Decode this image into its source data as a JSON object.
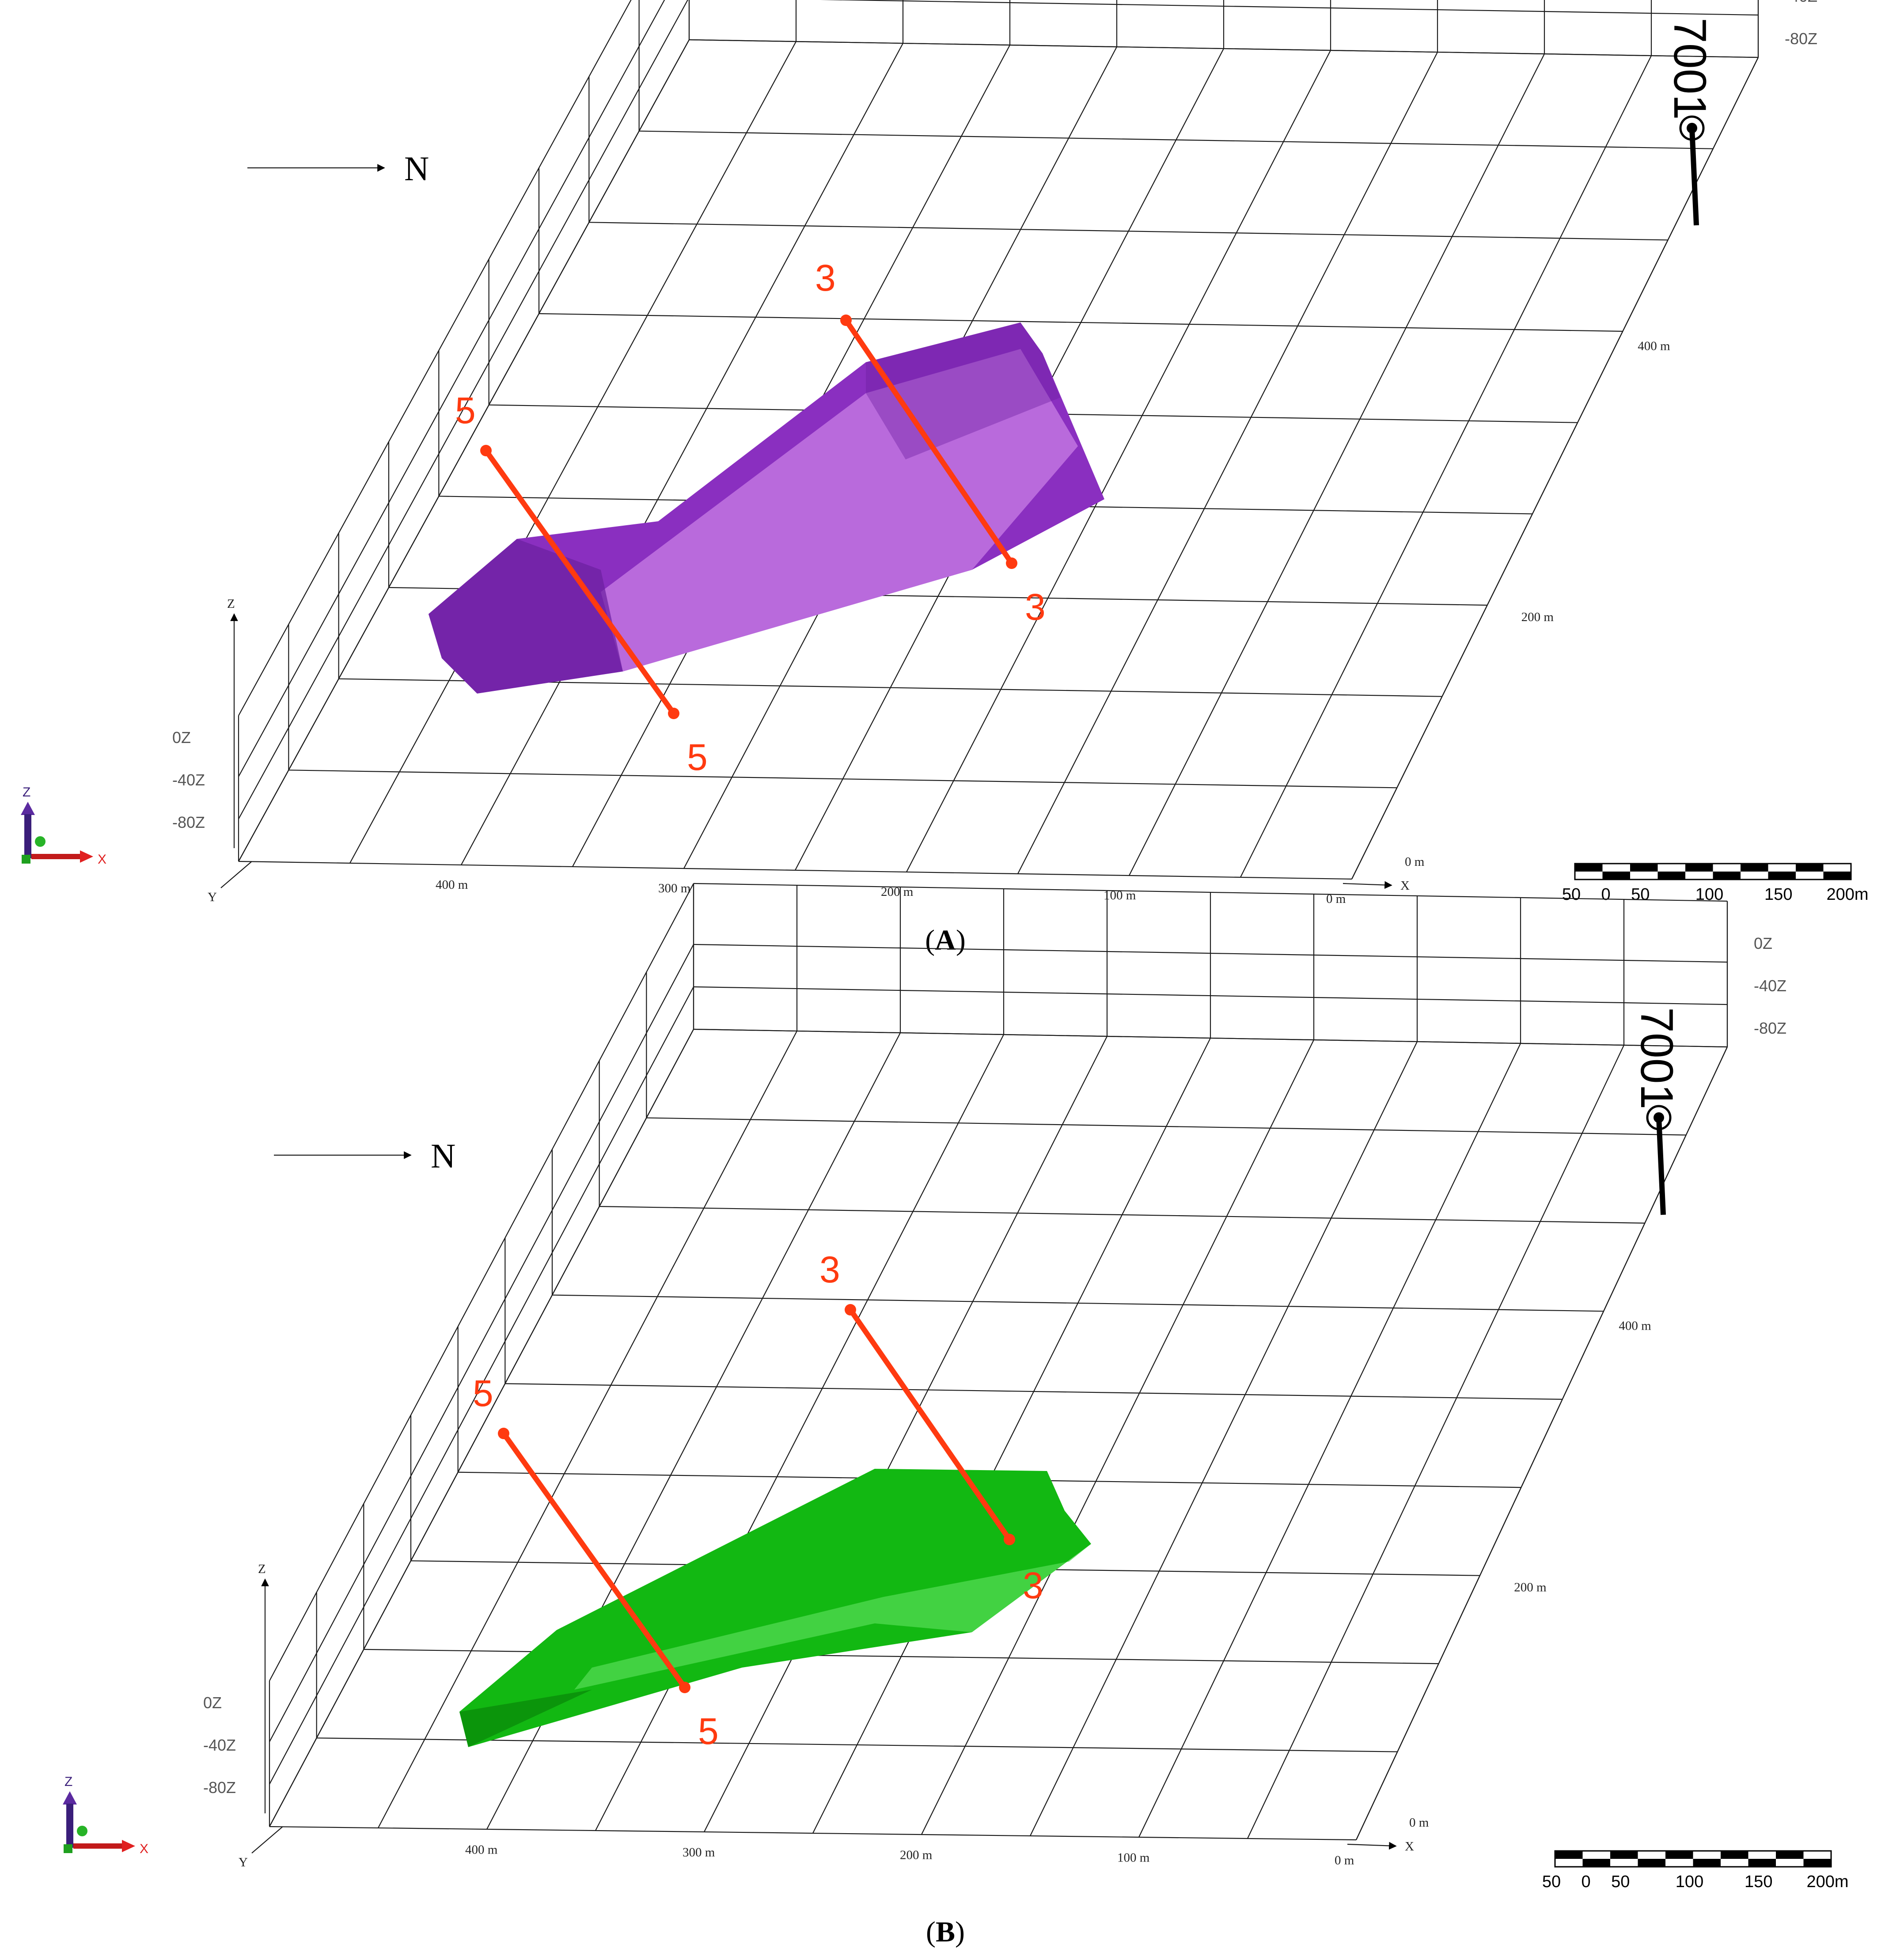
{
  "colors": {
    "panel_a_body": "#8a2fc0",
    "panel_a_body_light": "#c87fe6",
    "panel_a_body_dark": "#6b1fa0",
    "panel_b_body": "#12b812",
    "panel_b_body_light": "#4fd84f",
    "panel_b_body_dark": "#0a8c0a",
    "section_line": "#ff3a10",
    "well": "#000000",
    "grid": "#1a1a1a"
  },
  "panels": [
    {
      "id": "A",
      "label": "A",
      "north_label": "N",
      "well_label": "7001",
      "z_levels": [
        "0Z",
        "-40Z",
        "-80Z"
      ],
      "x_ticks": [
        "400 m",
        "300 m",
        "200 m",
        "100 m",
        "0 m"
      ],
      "y_ticks": [
        "0 m",
        "200 m",
        "400 m"
      ],
      "axis_labels": {
        "x": "X",
        "y": "Y",
        "z": "Z"
      },
      "sections": [
        {
          "label_start": "5",
          "label_end": "5"
        },
        {
          "label_start": "3",
          "label_end": "3"
        }
      ],
      "scale_bar": {
        "labels": [
          "50",
          "0",
          "50",
          "100",
          "150",
          "200m"
        ]
      },
      "triad": {
        "z": "Z",
        "x": "X",
        "z_icon": "z-arrow-icon",
        "x_icon": "x-arrow-icon",
        "y_icon": "y-axis-dot-icon"
      }
    },
    {
      "id": "B",
      "label": "B",
      "north_label": "N",
      "well_label": "7001",
      "z_levels": [
        "0Z",
        "-40Z",
        "-80Z"
      ],
      "x_ticks": [
        "400 m",
        "300 m",
        "200 m",
        "100 m",
        "0 m"
      ],
      "y_ticks": [
        "0 m",
        "200 m",
        "400 m"
      ],
      "axis_labels": {
        "x": "X",
        "y": "Y",
        "z": "Z"
      },
      "sections": [
        {
          "label_start": "5",
          "label_end": "5"
        },
        {
          "label_start": "3",
          "label_end": "3"
        }
      ],
      "scale_bar": {
        "labels": [
          "50",
          "0",
          "50",
          "100",
          "150",
          "200m"
        ]
      },
      "triad": {
        "z": "Z",
        "x": "X",
        "z_icon": "z-arrow-icon",
        "x_icon": "x-arrow-icon",
        "y_icon": "y-axis-dot-icon"
      }
    }
  ]
}
